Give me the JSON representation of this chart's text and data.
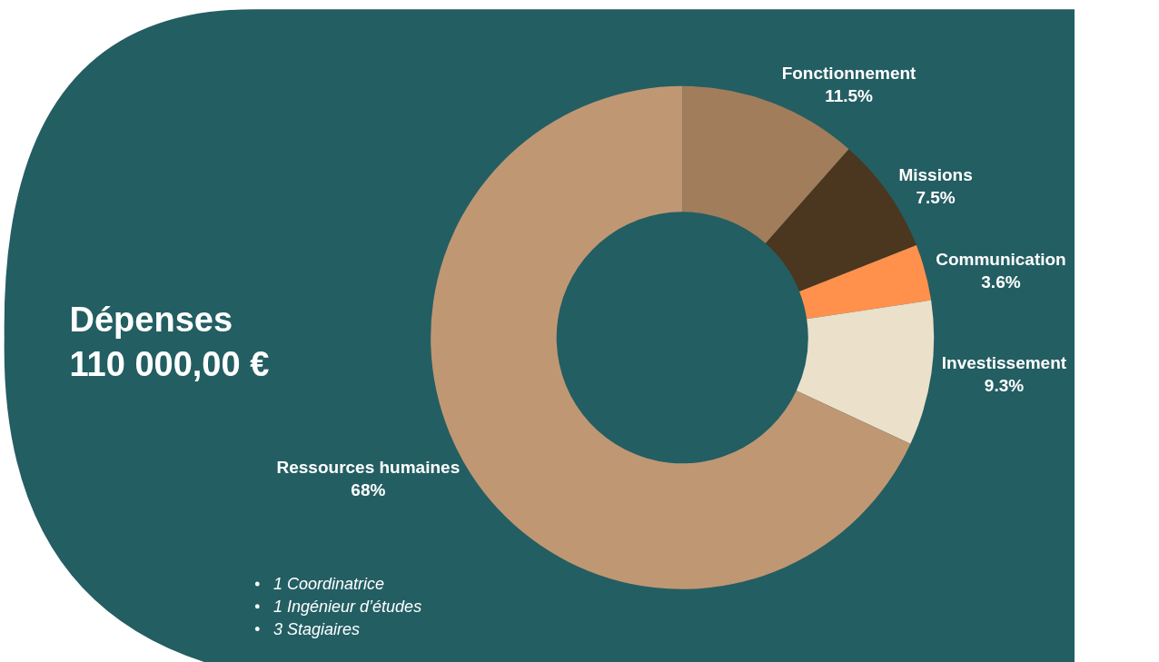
{
  "chart_data": {
    "type": "donut",
    "title": "Dépenses",
    "subtitle": "110 000,00 €",
    "categories": [
      "Fonctionnement",
      "Missions",
      "Communication",
      "Investissement",
      "Ressources humaines"
    ],
    "values": [
      11.5,
      7.5,
      3.6,
      9.3,
      68
    ],
    "value_labels": [
      "11.5%",
      "7.5%",
      "3.6%",
      "9.3%",
      "68%"
    ],
    "colors": [
      "#a27d5b",
      "#4b3620",
      "#ff914d",
      "#ebe0ca",
      "#c09773"
    ],
    "annotations": [
      "1 Coordinatrice",
      "1 Ingénieur d’études",
      "3 Stagiaires"
    ],
    "legend": false
  }
}
